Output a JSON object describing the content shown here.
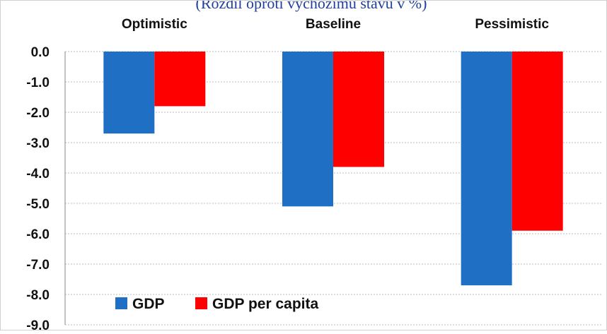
{
  "chart_data": {
    "type": "bar",
    "title": "(Rozdíl oproti výchozímu stavu v %)",
    "categories": [
      "Optimistic",
      "Baseline",
      "Pessimistic"
    ],
    "series": [
      {
        "name": "GDP",
        "values": [
          -2.7,
          -5.1,
          -7.7
        ],
        "color": "#1f6fc5"
      },
      {
        "name": "GDP per capita",
        "values": [
          -1.8,
          -3.8,
          -5.9
        ],
        "color": "#ff0000"
      }
    ],
    "ylim": [
      -9.0,
      0.0
    ],
    "yticks": [
      "0.0",
      "-1.0",
      "-2.0",
      "-3.0",
      "-4.0",
      "-5.0",
      "-6.0",
      "-7.0",
      "-8.0",
      "-9.0"
    ],
    "xlabel": "",
    "ylabel": "",
    "grid": true,
    "legend_position": "bottom-left",
    "category_labels_position": "top"
  }
}
